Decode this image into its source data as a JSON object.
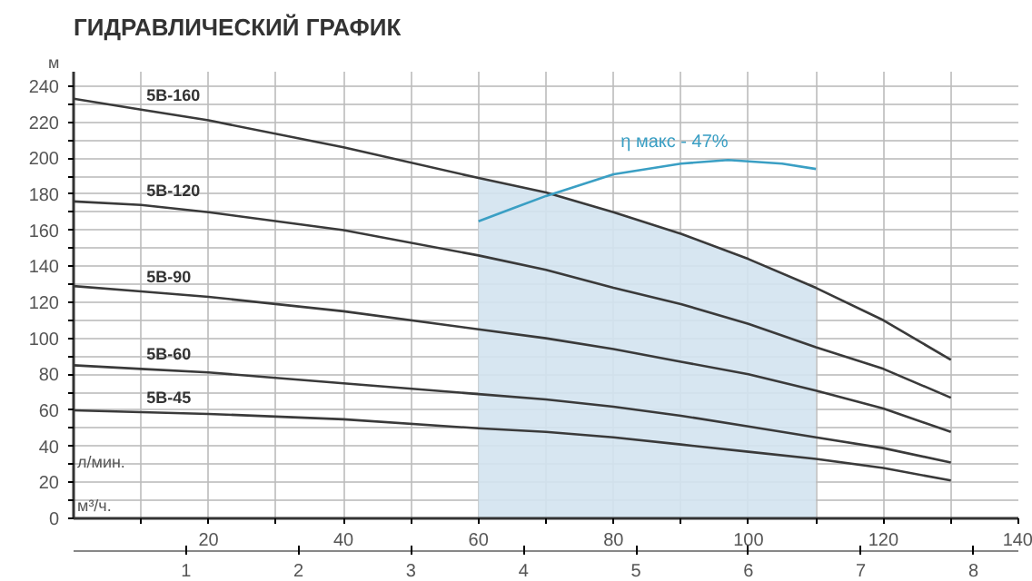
{
  "chart_data": {
    "type": "line",
    "title": "ГИДРАВЛИЧЕСКИЙ ГРАФИК",
    "xlabel": "л/мин.",
    "ylabel": "м",
    "x2label": "м³/ч.",
    "x": [
      0,
      10,
      20,
      40,
      60,
      70,
      80,
      90,
      100,
      110,
      120,
      130
    ],
    "series": [
      {
        "name": "5B-160",
        "color": "#3a3a3a",
        "values": [
          233,
          227,
          221,
          206,
          189,
          181,
          170,
          158,
          144,
          128,
          110,
          88
        ]
      },
      {
        "name": "5B-120",
        "color": "#3a3a3a",
        "values": [
          176,
          174,
          170,
          160,
          146,
          138,
          128,
          119,
          108,
          95,
          83,
          67
        ]
      },
      {
        "name": "5B-90",
        "color": "#3a3a3a",
        "values": [
          129,
          126,
          123,
          115,
          105,
          100,
          94,
          87,
          80,
          71,
          61,
          48
        ]
      },
      {
        "name": "5B-60",
        "color": "#3a3a3a",
        "values": [
          85,
          83,
          81,
          75,
          69,
          66,
          62,
          57,
          51,
          45,
          39,
          31
        ]
      },
      {
        "name": "5B-45",
        "color": "#3a3a3a",
        "values": [
          60,
          59,
          58,
          55,
          50,
          48,
          45,
          41,
          37,
          33,
          28,
          21
        ]
      },
      {
        "color": "#3a9fc4",
        "x": [
          60,
          65,
          70,
          80,
          90,
          97,
          105,
          110
        ],
        "values": [
          165,
          172,
          179,
          191,
          197,
          199,
          197,
          194
        ]
      }
    ],
    "annotations": [
      "η макс - 47%"
    ],
    "bands": [
      {
        "axis": "x",
        "from": 60,
        "to": 110,
        "color": "#d3e3ef"
      }
    ],
    "xlim": [
      0,
      140
    ],
    "ylim": [
      0,
      248
    ],
    "xticks": [
      {
        "value": 10,
        "label": null
      },
      20,
      {
        "value": 30,
        "label": null
      },
      40,
      {
        "value": 50,
        "label": null
      },
      60,
      {
        "value": 70,
        "label": null
      },
      80,
      {
        "value": 90,
        "label": null
      },
      100,
      {
        "value": 110,
        "label": null
      },
      120,
      {
        "value": 130,
        "label": null
      },
      140
    ],
    "yticks": [
      0,
      {
        "value": 10,
        "label": null
      },
      20,
      {
        "value": 30,
        "label": null
      },
      40,
      {
        "value": 50,
        "label": null
      },
      60,
      {
        "value": 70,
        "label": null
      },
      80,
      {
        "value": 90,
        "label": null
      },
      100,
      {
        "value": 110,
        "label": null
      },
      120,
      {
        "value": 130,
        "label": null
      },
      140,
      {
        "value": 150,
        "label": null
      },
      160,
      {
        "value": 170,
        "label": null
      },
      180,
      {
        "value": 190,
        "label": null
      },
      200,
      {
        "value": 210,
        "label": null
      },
      220,
      {
        "value": 230,
        "label": null
      },
      240
    ],
    "x2lim": [
      0,
      8.4
    ],
    "x2ticks": [
      1,
      2,
      3,
      4,
      5,
      6,
      7,
      8
    ],
    "grid": true,
    "marker": "none",
    "line_style": "solid"
  }
}
